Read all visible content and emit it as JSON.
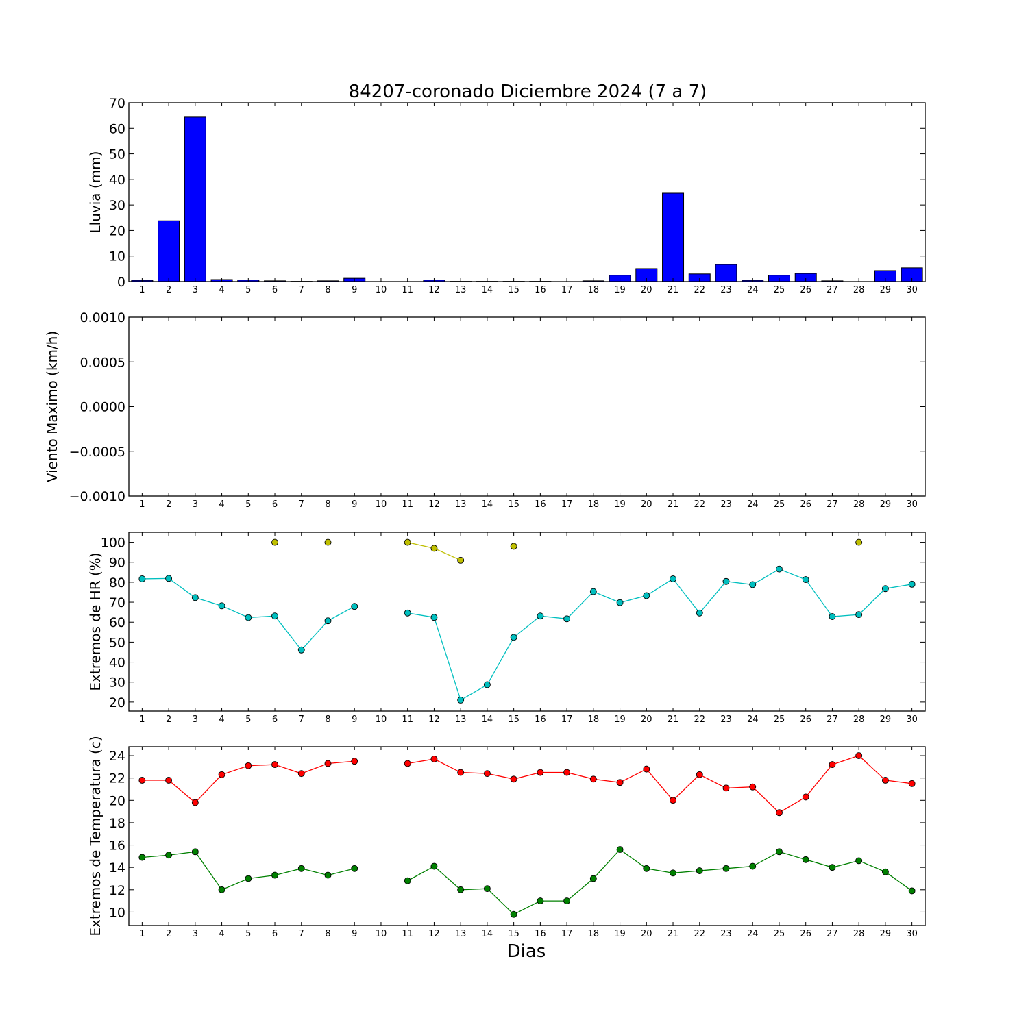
{
  "chart_data": {
    "title": "84207-coronado Diciembre 2024  (7 a 7)",
    "xlabel": "Dias",
    "days": [
      1,
      2,
      3,
      4,
      5,
      6,
      7,
      8,
      9,
      10,
      11,
      12,
      13,
      14,
      15,
      16,
      17,
      18,
      19,
      20,
      21,
      22,
      23,
      24,
      25,
      26,
      27,
      28,
      29,
      30
    ],
    "panels": [
      {
        "type": "bar",
        "ylabel": "Lluvia (mm)",
        "ylim": [
          0,
          70
        ],
        "yticks": [
          0,
          10,
          20,
          30,
          40,
          50,
          60,
          70
        ],
        "ytick_labels": [
          "0",
          "10",
          "20",
          "30",
          "40",
          "50",
          "60",
          "70"
        ],
        "series": [
          {
            "color": "#0000ff",
            "values": [
              0.5,
              23.8,
              64.4,
              0.8,
              0.6,
              0.3,
              0.1,
              0.3,
              1.3,
              0.0,
              0.0,
              0.6,
              0.1,
              0.1,
              0.1,
              0.1,
              0.0,
              0.3,
              2.5,
              5.1,
              34.6,
              3.0,
              6.7,
              0.5,
              2.5,
              3.2,
              0.3,
              0.0,
              4.3,
              5.4
            ]
          }
        ]
      },
      {
        "type": "line",
        "ylabel": "Viento Maximo (km/h)",
        "ylim": [
          -0.001,
          0.001
        ],
        "yticks": [
          -0.001,
          -0.0005,
          0.0,
          0.0005,
          0.001
        ],
        "ytick_labels": [
          "−0.0010",
          "−0.0005",
          "0.0000",
          "0.0005",
          "0.0010"
        ],
        "series": []
      },
      {
        "type": "line",
        "ylabel": "Extremos de HR (%)",
        "ylim": [
          15.5,
          105
        ],
        "yticks": [
          20,
          30,
          40,
          50,
          60,
          70,
          80,
          90,
          100
        ],
        "ytick_labels": [
          "20",
          "30",
          "40",
          "50",
          "60",
          "70",
          "80",
          "90",
          "100"
        ],
        "series": [
          {
            "color": "#bfbf00",
            "values": [
              null,
              null,
              null,
              null,
              null,
              100,
              null,
              100,
              null,
              null,
              100,
              97,
              91,
              null,
              98,
              null,
              null,
              null,
              null,
              null,
              null,
              null,
              null,
              null,
              null,
              null,
              null,
              100,
              null,
              null
            ]
          },
          {
            "color": "#00bfbf",
            "values": [
              81.7,
              81.9,
              72.3,
              68.2,
              62.3,
              63.1,
              46.1,
              60.7,
              67.9,
              null,
              64.6,
              62.4,
              21.0,
              28.7,
              52.4,
              63.1,
              61.7,
              75.3,
              69.8,
              73.3,
              81.7,
              64.6,
              80.4,
              78.8,
              86.6,
              81.3,
              62.8,
              63.8,
              76.8,
              79.0
            ]
          }
        ]
      },
      {
        "type": "line",
        "ylabel": "Extremos de Temperatura (c)",
        "ylim": [
          8.8,
          24.8
        ],
        "yticks": [
          10,
          12,
          14,
          16,
          18,
          20,
          22,
          24
        ],
        "ytick_labels": [
          "10",
          "12",
          "14",
          "16",
          "18",
          "20",
          "22",
          "24"
        ],
        "series": [
          {
            "color": "#ff0000",
            "values": [
              21.8,
              21.8,
              19.8,
              22.3,
              23.1,
              23.2,
              22.4,
              23.3,
              23.5,
              null,
              23.3,
              23.7,
              22.5,
              22.4,
              21.9,
              22.5,
              22.5,
              21.9,
              21.6,
              22.8,
              20.0,
              22.3,
              21.1,
              21.2,
              18.9,
              20.3,
              23.2,
              24.0,
              21.8,
              21.5
            ]
          },
          {
            "color": "#008000",
            "values": [
              14.9,
              15.1,
              15.4,
              12.0,
              13.0,
              13.3,
              13.9,
              13.3,
              13.9,
              null,
              12.8,
              14.1,
              12.0,
              12.1,
              9.8,
              11.0,
              11.0,
              13.0,
              15.6,
              13.9,
              13.5,
              13.7,
              13.9,
              14.1,
              15.4,
              14.7,
              14.0,
              14.6,
              13.6,
              11.9
            ]
          }
        ]
      }
    ]
  }
}
